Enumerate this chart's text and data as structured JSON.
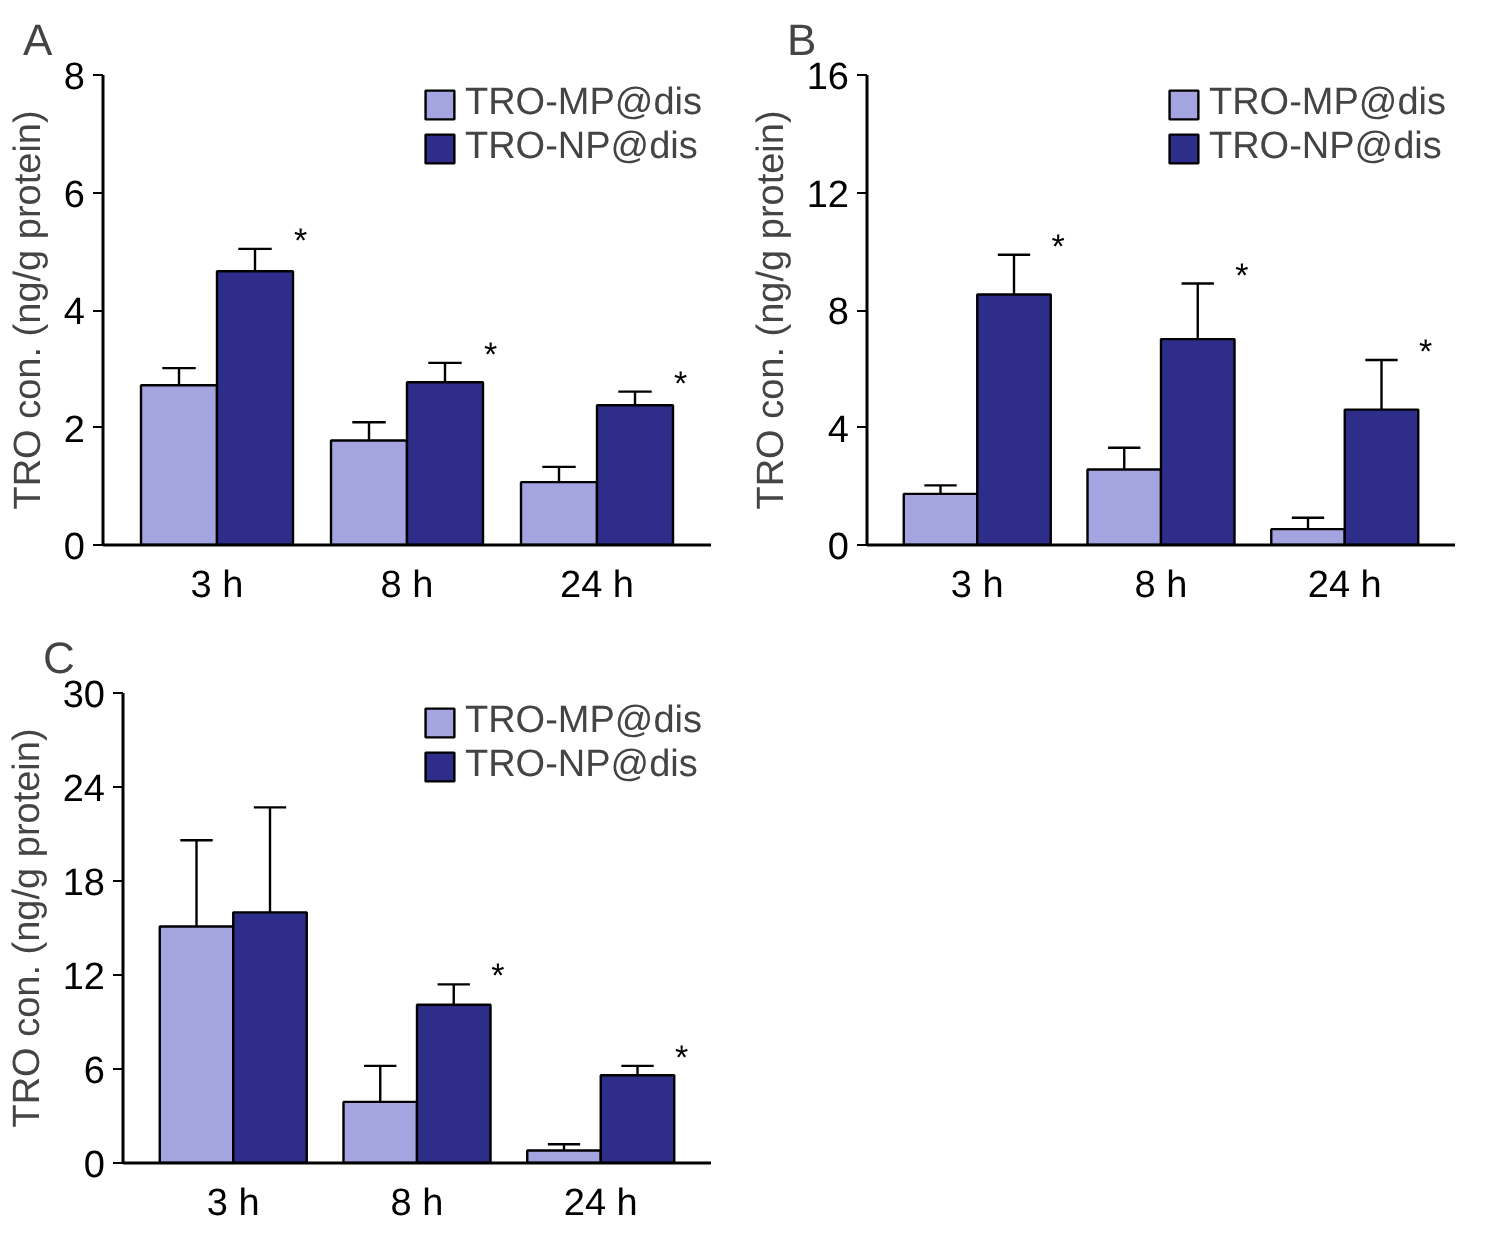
{
  "chart_data": [
    {
      "type": "bar",
      "title": "A",
      "ylabel": "TRO con. (ng/g protein)",
      "categories": [
        "3 h",
        "8 h",
        "24 h"
      ],
      "ylim": [
        0,
        8
      ],
      "yticks": [
        0,
        2,
        4,
        6,
        8
      ],
      "grid": false,
      "legend": "top right",
      "series": [
        {
          "name": "TRO-MP@dis",
          "color": "#a4a4e0",
          "values": [
            2.72,
            1.78,
            1.07
          ],
          "errors": [
            [
              2.72,
              3.01
            ],
            [
              1.78,
              2.09
            ],
            [
              1.07,
              1.33
            ]
          ]
        },
        {
          "name": "TRO-NP@dis",
          "color": "#2e2e8a",
          "values": [
            4.66,
            2.77,
            2.38
          ],
          "errors": [
            [
              4.66,
              5.04
            ],
            [
              2.77,
              3.1
            ],
            [
              2.38,
              2.61
            ]
          ],
          "value_labels": [
            "*",
            "*",
            "*"
          ]
        }
      ]
    },
    {
      "type": "bar",
      "title": "B",
      "ylabel": "TRO con. (ng/g protein)",
      "categories": [
        "3 h",
        "8 h",
        "24 h"
      ],
      "ylim": [
        0,
        16
      ],
      "yticks": [
        0,
        4,
        8,
        12,
        16
      ],
      "grid": false,
      "legend": "top right",
      "series": [
        {
          "name": "TRO-MP@dis",
          "color": "#a4a4e0",
          "values": [
            1.74,
            2.57,
            0.54
          ],
          "errors": [
            [
              1.74,
              2.03
            ],
            [
              2.57,
              3.31
            ],
            [
              0.54,
              0.93
            ]
          ]
        },
        {
          "name": "TRO-NP@dis",
          "color": "#2e2e8a",
          "values": [
            8.53,
            7.01,
            4.61
          ],
          "errors": [
            [
              8.53,
              9.88
            ],
            [
              7.01,
              8.9
            ],
            [
              4.61,
              6.3
            ]
          ],
          "value_labels": [
            "*",
            "*",
            "*"
          ]
        }
      ]
    },
    {
      "type": "bar",
      "title": "C",
      "ylabel": "TRO con. (ng/g protein)",
      "categories": [
        "3 h",
        "8 h",
        "24 h"
      ],
      "ylim": [
        0,
        30
      ],
      "yticks": [
        0,
        6,
        12,
        18,
        24,
        30
      ],
      "grid": false,
      "legend": "top right",
      "series": [
        {
          "name": "TRO-MP@dis",
          "color": "#a4a4e0",
          "values": [
            15.1,
            3.9,
            0.8
          ],
          "errors": [
            [
              15.1,
              20.6
            ],
            [
              3.9,
              6.2
            ],
            [
              0.8,
              1.2
            ]
          ]
        },
        {
          "name": "TRO-NP@dis",
          "color": "#2e2e8a",
          "values": [
            16.0,
            10.1,
            5.6
          ],
          "errors": [
            [
              16.0,
              22.7
            ],
            [
              10.1,
              11.4
            ],
            [
              5.6,
              6.2
            ]
          ],
          "value_labels": [
            null,
            "*",
            "*"
          ]
        }
      ]
    }
  ]
}
